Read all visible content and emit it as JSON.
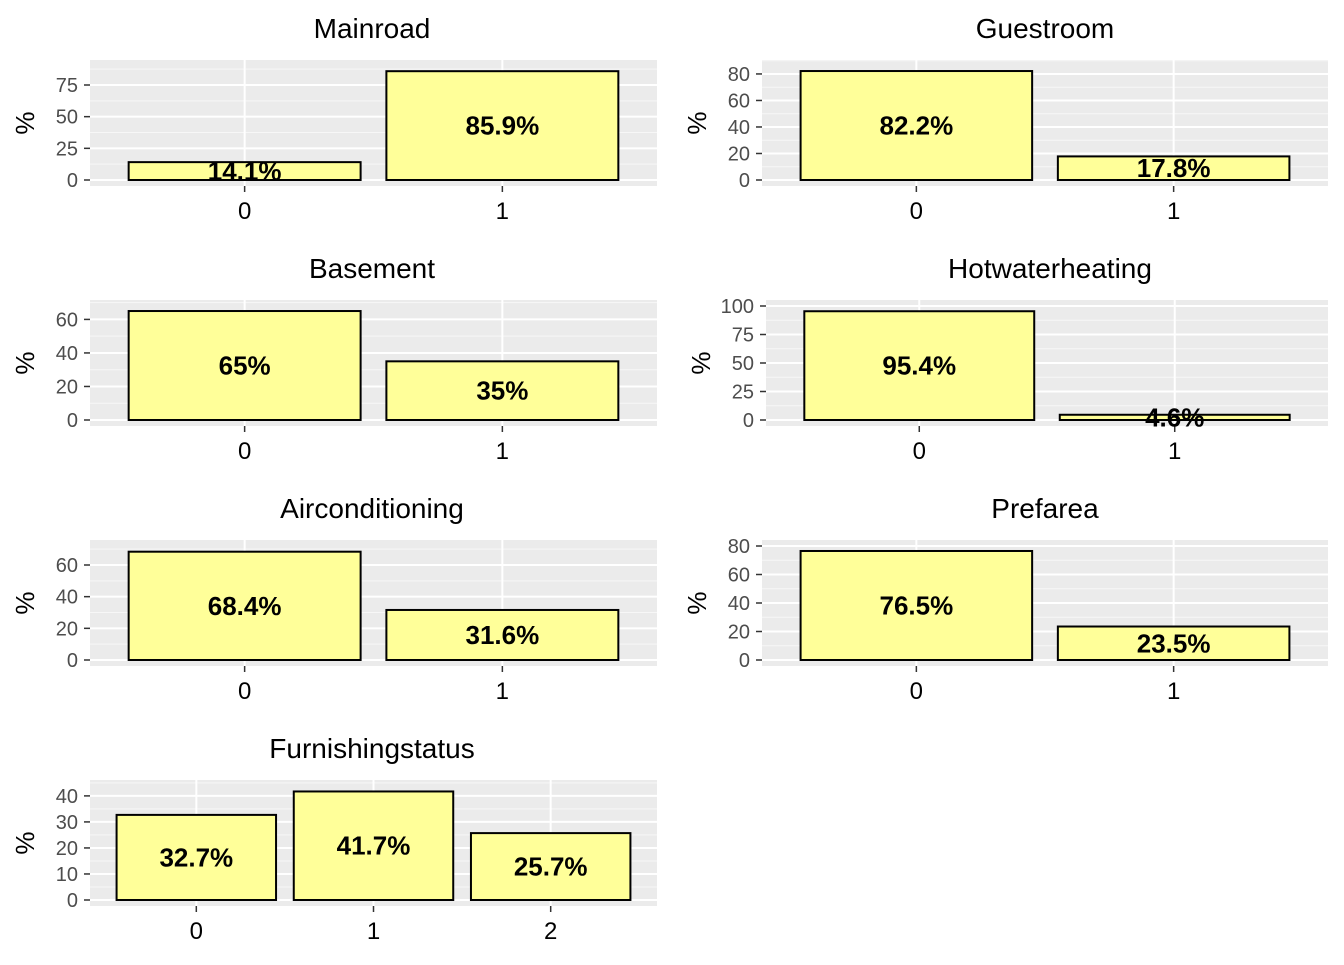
{
  "bar_fill": "#FFFF99",
  "bar_stroke": "#000000",
  "panel_bg": "#EBEBEB",
  "grid_major": "#FFFFFF",
  "chart_data": [
    {
      "type": "bar",
      "title": "Mainroad",
      "ylabel": "%",
      "categories": [
        "0",
        "1"
      ],
      "values": [
        14.1,
        85.9
      ],
      "labels": [
        "14.1%",
        "85.9%"
      ],
      "yticks": [
        0,
        25,
        50,
        75
      ],
      "ylim": [
        0,
        90
      ],
      "grid": true
    },
    {
      "type": "bar",
      "title": "Guestroom",
      "ylabel": "%",
      "categories": [
        "0",
        "1"
      ],
      "values": [
        82.2,
        17.8
      ],
      "labels": [
        "82.2%",
        "17.8%"
      ],
      "yticks": [
        0,
        20,
        40,
        60,
        80
      ],
      "ylim": [
        0,
        86
      ],
      "grid": true
    },
    {
      "type": "bar",
      "title": "Basement",
      "ylabel": "%",
      "categories": [
        "0",
        "1"
      ],
      "values": [
        65,
        35
      ],
      "labels": [
        "65%",
        "35%"
      ],
      "yticks": [
        0,
        20,
        40,
        60
      ],
      "ylim": [
        0,
        68
      ],
      "grid": true
    },
    {
      "type": "bar",
      "title": "Hotwaterheating",
      "ylabel": "%",
      "categories": [
        "0",
        "1"
      ],
      "values": [
        95.4,
        4.6
      ],
      "labels": [
        "95.4%",
        "4.6%"
      ],
      "yticks": [
        0,
        25,
        50,
        75,
        100
      ],
      "ylim": [
        0,
        100
      ],
      "grid": true
    },
    {
      "type": "bar",
      "title": "Airconditioning",
      "ylabel": "%",
      "categories": [
        "0",
        "1"
      ],
      "values": [
        68.4,
        31.6
      ],
      "labels": [
        "68.4%",
        "31.6%"
      ],
      "yticks": [
        0,
        20,
        40,
        60
      ],
      "ylim": [
        0,
        72
      ],
      "grid": true
    },
    {
      "type": "bar",
      "title": "Prefarea",
      "ylabel": "%",
      "categories": [
        "0",
        "1"
      ],
      "values": [
        76.5,
        23.5
      ],
      "labels": [
        "76.5%",
        "23.5%"
      ],
      "yticks": [
        0,
        20,
        40,
        60,
        80
      ],
      "ylim": [
        0,
        80
      ],
      "grid": true
    },
    {
      "type": "bar",
      "title": "Furnishingstatus",
      "ylabel": "%",
      "categories": [
        "0",
        "1",
        "2"
      ],
      "values": [
        32.7,
        41.7,
        25.7
      ],
      "labels": [
        "32.7%",
        "41.7%",
        "25.7%"
      ],
      "yticks": [
        0,
        10,
        20,
        30,
        40
      ],
      "ylim": [
        0,
        43.8
      ],
      "grid": true
    }
  ]
}
